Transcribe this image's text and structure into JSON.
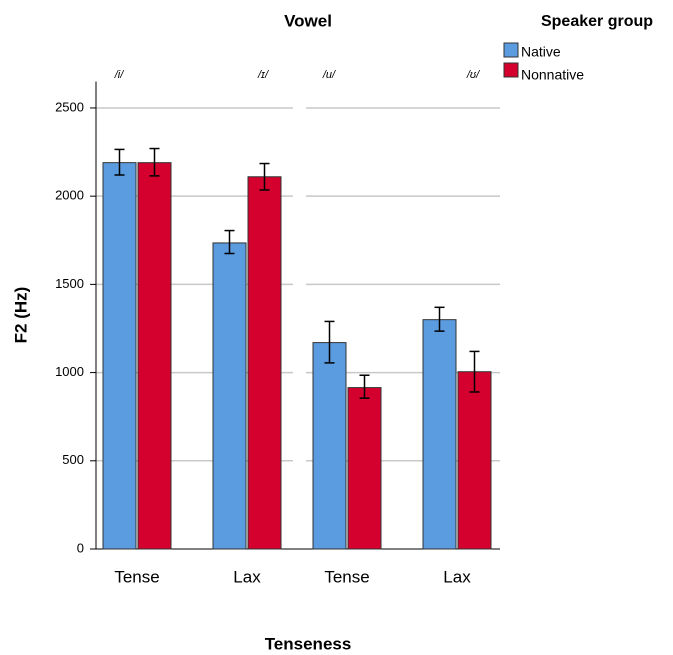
{
  "chart_data": {
    "type": "bar",
    "title": "Vowel",
    "x_label": "Tenseness",
    "y_label": "F2 (Hz)",
    "legend_title": "Speaker group",
    "ylim": [
      0,
      2650
    ],
    "yticks": [
      0,
      500,
      1000,
      1500,
      2000,
      2500
    ],
    "grid": true,
    "series": [
      {
        "name": "Native",
        "color": "#5b9be0"
      },
      {
        "name": "Nonnative",
        "color": "#d4002d"
      }
    ],
    "panels": [
      {
        "categories": [
          "Tense",
          "Lax"
        ],
        "vowels": [
          "/i/",
          "/ɪ/"
        ],
        "series": [
          {
            "values": [
              2190,
              1735
            ],
            "error_low": [
              2120,
              1675
            ],
            "error_high": [
              2265,
              1805
            ]
          },
          {
            "values": [
              2190,
              2110
            ],
            "error_low": [
              2115,
              2035
            ],
            "error_high": [
              2270,
              2185
            ]
          }
        ]
      },
      {
        "categories": [
          "Tense",
          "Lax"
        ],
        "vowels": [
          "/u/",
          "/ʊ/"
        ],
        "series": [
          {
            "values": [
              1170,
              1300
            ],
            "error_low": [
              1055,
              1235
            ],
            "error_high": [
              1290,
              1370
            ]
          },
          {
            "values": [
              915,
              1005
            ],
            "error_low": [
              855,
              890
            ],
            "error_high": [
              985,
              1120
            ]
          }
        ]
      }
    ]
  }
}
